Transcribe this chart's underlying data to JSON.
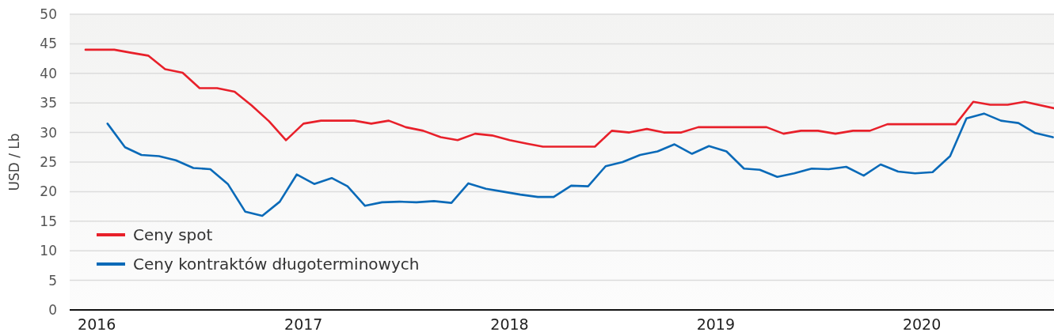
{
  "chart_data": {
    "type": "line",
    "ylabel": "USD / Lb",
    "xlim": [
      "2015-11-14",
      "2020-08-22"
    ],
    "xticks": [
      {
        "value": "2016-01-01",
        "label": "2016"
      },
      {
        "value": "2017-01-01",
        "label": "2017"
      },
      {
        "value": "2018-01-01",
        "label": "2018"
      },
      {
        "value": "2019-01-01",
        "label": "2019"
      },
      {
        "value": "2020-01-01",
        "label": "2020"
      }
    ],
    "ylim": [
      0,
      50
    ],
    "yticks": [
      0,
      5,
      10,
      15,
      20,
      25,
      30,
      35,
      40,
      45,
      50
    ],
    "grid": "y",
    "legend": "bottom left",
    "marker": "none",
    "line_style": "solid",
    "series": [
      {
        "name": "Ceny spot",
        "color": "#e8202a",
        "x": [
          "2015-12-12",
          "2016-01",
          "2016-02",
          "2016-03",
          "2016-04",
          "2016-05",
          "2016-06",
          "2016-07",
          "2016-08",
          "2016-09",
          "2016-10",
          "2016-11",
          "2016-12",
          "2017-01",
          "2017-02",
          "2017-03",
          "2017-04",
          "2017-05",
          "2017-06",
          "2017-07",
          "2017-08",
          "2017-09",
          "2017-10",
          "2017-11",
          "2017-12",
          "2018-01",
          "2018-02",
          "2018-03",
          "2018-04",
          "2018-05",
          "2018-06",
          "2018-07",
          "2018-08",
          "2018-09",
          "2018-10",
          "2018-11",
          "2018-12",
          "2019-01",
          "2019-02",
          "2019-03",
          "2019-04",
          "2019-05",
          "2019-06",
          "2019-07",
          "2019-08",
          "2019-09",
          "2019-10",
          "2019-11",
          "2019-12",
          "2020-01",
          "2020-02",
          "2020-03",
          "2020-04",
          "2020-05",
          "2020-06",
          "2020-07",
          "2020-08-22"
        ],
        "values": [
          44,
          44,
          44,
          43.5,
          43,
          40.7,
          40.1,
          37.5,
          37.5,
          36.9,
          34.6,
          31.9,
          28.7,
          31.5,
          32,
          32,
          32,
          31.5,
          32,
          30.9,
          30.3,
          29.2,
          28.7,
          29.8,
          29.5,
          28.7,
          28.1,
          27.6,
          27.6,
          27.6,
          27.6,
          30.3,
          30,
          30.6,
          30,
          30,
          30.9,
          30.9,
          30.9,
          30.9,
          30.9,
          29.8,
          30.3,
          30.3,
          29.8,
          30.3,
          30.3,
          31.4,
          31.4,
          31.4,
          31.4,
          31.4,
          35.2,
          34.7,
          34.7,
          35.2,
          34.1
        ]
      },
      {
        "name": "Ceny kontraktów długoterminowych",
        "color": "#0a6ab8",
        "x": [
          "2016-01-20",
          "2016-02-20",
          "2016-03-20",
          "2016-04-20",
          "2016-05-20",
          "2016-06-20",
          "2016-07-20",
          "2016-08-20",
          "2016-09-20",
          "2016-10-20",
          "2016-11-20",
          "2016-12-20",
          "2017-01-20",
          "2017-02-20",
          "2017-03-20",
          "2017-04-20",
          "2017-05-20",
          "2017-06-20",
          "2017-07-20",
          "2017-08-20",
          "2017-09-20",
          "2017-10-20",
          "2017-11-20",
          "2017-12-20",
          "2018-01-20",
          "2018-02-20",
          "2018-03-20",
          "2018-04-20",
          "2018-05-20",
          "2018-06-20",
          "2018-07-20",
          "2018-08-20",
          "2018-09-20",
          "2018-10-20",
          "2018-11-20",
          "2018-12-20",
          "2019-01-20",
          "2019-02-20",
          "2019-03-20",
          "2019-04-20",
          "2019-05-20",
          "2019-06-20",
          "2019-07-20",
          "2019-08-20",
          "2019-09-20",
          "2019-10-20",
          "2019-11-20",
          "2019-12-20",
          "2020-01-20",
          "2020-02-20",
          "2020-03-20",
          "2020-04-20",
          "2020-05-20",
          "2020-06-20",
          "2020-07-20",
          "2020-08-20"
        ],
        "values": [
          31.5,
          27.5,
          26.2,
          26,
          25.3,
          24,
          23.8,
          21.3,
          16.6,
          15.9,
          18.3,
          22.9,
          21.3,
          22.3,
          20.9,
          17.6,
          18.2,
          18.3,
          18.2,
          18.4,
          18.1,
          21.4,
          20.5,
          20,
          19.5,
          19.1,
          19.1,
          21,
          20.9,
          24.3,
          25,
          26.2,
          26.8,
          28,
          26.4,
          27.7,
          26.8,
          23.9,
          23.7,
          22.5,
          23.1,
          23.9,
          23.8,
          24.2,
          22.7,
          24.6,
          23.4,
          23.1,
          23.3,
          26,
          32.4,
          33.2,
          32,
          31.6,
          29.9,
          29.2
        ]
      }
    ]
  }
}
